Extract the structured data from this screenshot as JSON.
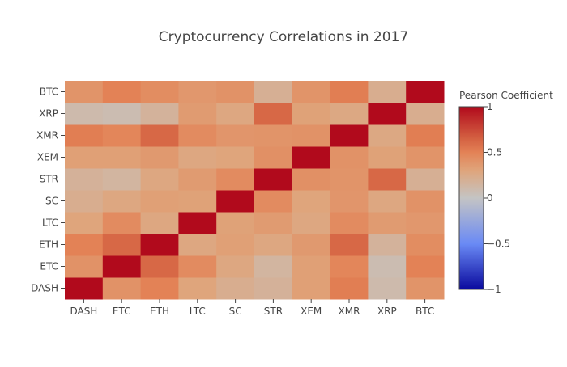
{
  "chart_data": {
    "type": "heatmap",
    "title": "Cryptocurrency Correlations in 2017",
    "x_categories": [
      "DASH",
      "ETC",
      "ETH",
      "LTC",
      "SC",
      "STR",
      "XEM",
      "XMR",
      "XRP",
      "BTC"
    ],
    "y_categories": [
      "DASH",
      "ETC",
      "ETH",
      "LTC",
      "SC",
      "STR",
      "XEM",
      "XMR",
      "XRP",
      "BTC"
    ],
    "z": [
      [
        1.0,
        0.41,
        0.5,
        0.3,
        0.22,
        0.18,
        0.33,
        0.52,
        0.1,
        0.4
      ],
      [
        0.41,
        1.0,
        0.62,
        0.45,
        0.28,
        0.15,
        0.33,
        0.48,
        0.08,
        0.5
      ],
      [
        0.5,
        0.62,
        1.0,
        0.28,
        0.33,
        0.28,
        0.37,
        0.62,
        0.17,
        0.44
      ],
      [
        0.3,
        0.45,
        0.28,
        1.0,
        0.32,
        0.36,
        0.28,
        0.45,
        0.36,
        0.38
      ],
      [
        0.22,
        0.28,
        0.33,
        0.32,
        1.0,
        0.45,
        0.3,
        0.39,
        0.28,
        0.41
      ],
      [
        0.18,
        0.15,
        0.28,
        0.36,
        0.45,
        1.0,
        0.42,
        0.4,
        0.62,
        0.2
      ],
      [
        0.33,
        0.33,
        0.37,
        0.28,
        0.3,
        0.42,
        1.0,
        0.41,
        0.32,
        0.4
      ],
      [
        0.52,
        0.48,
        0.62,
        0.45,
        0.39,
        0.4,
        0.41,
        1.0,
        0.27,
        0.52
      ],
      [
        0.1,
        0.08,
        0.17,
        0.36,
        0.28,
        0.62,
        0.32,
        0.27,
        1.0,
        0.22
      ],
      [
        0.4,
        0.5,
        0.44,
        0.38,
        0.41,
        0.2,
        0.4,
        0.52,
        0.22,
        1.0
      ]
    ],
    "zlim": [
      -1,
      1
    ],
    "colorbar": {
      "title": "Pearson Coefficient",
      "ticks": [
        1,
        0.5,
        0,
        -0.5,
        -1
      ],
      "tick_labels": [
        "1",
        "0.5",
        "0",
        "−0.5",
        "−1"
      ]
    },
    "colorscale": [
      [
        -1,
        "#0a0a9e"
      ],
      [
        -0.5,
        "#6a8af5"
      ],
      [
        0,
        "#c4c4c4"
      ],
      [
        0.3,
        "#dfa57c"
      ],
      [
        0.5,
        "#e38256"
      ],
      [
        0.65,
        "#d46142"
      ],
      [
        1,
        "#b10a1c"
      ]
    ]
  }
}
